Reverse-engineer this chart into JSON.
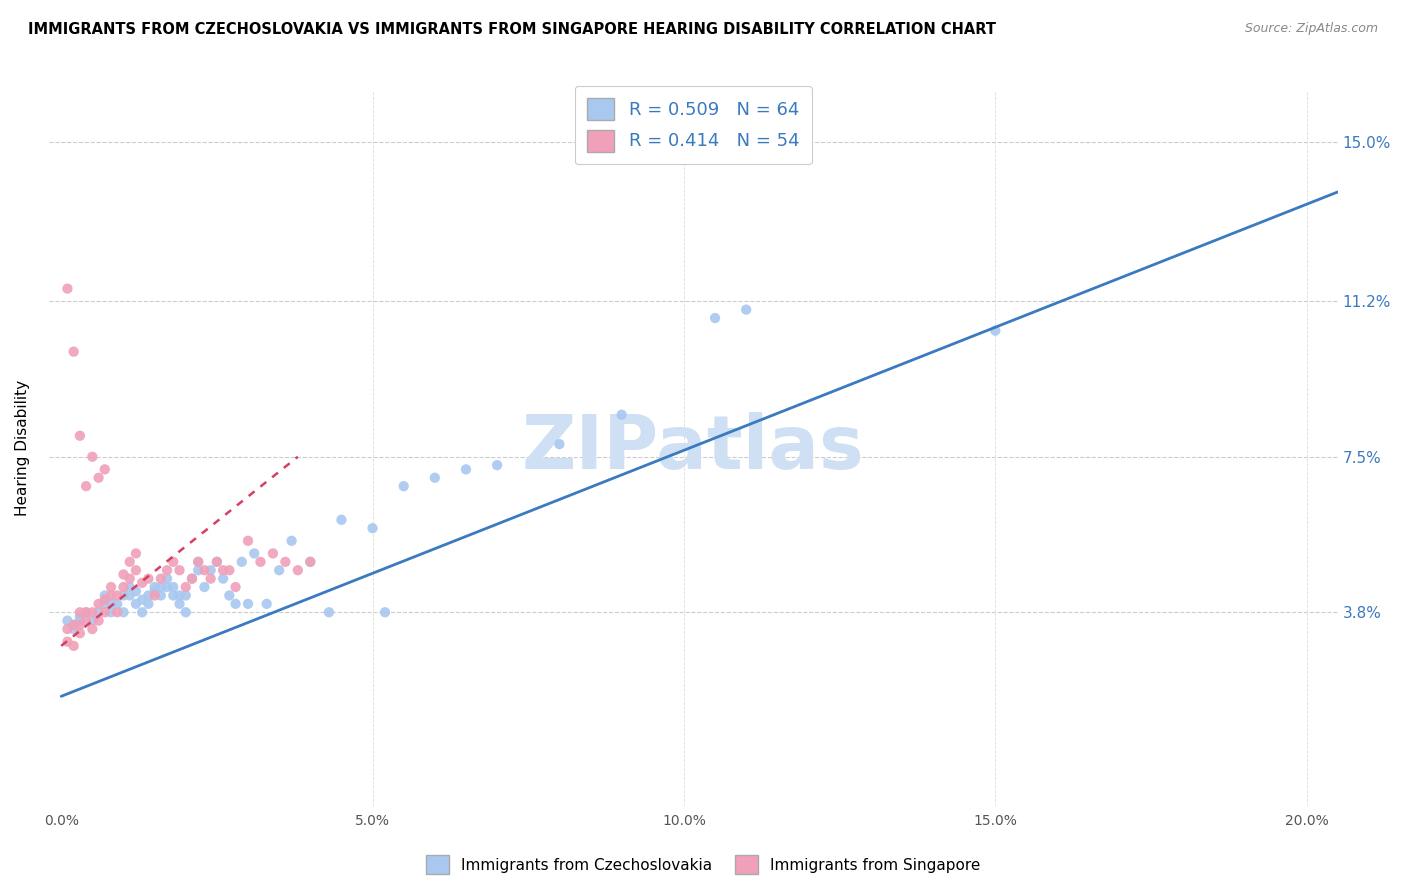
{
  "title": "IMMIGRANTS FROM CZECHOSLOVAKIA VS IMMIGRANTS FROM SINGAPORE HEARING DISABILITY CORRELATION CHART",
  "source": "Source: ZipAtlas.com",
  "ylabel": "Hearing Disability",
  "ytick_labels": [
    "3.8%",
    "7.5%",
    "11.2%",
    "15.0%"
  ],
  "ytick_values": [
    0.038,
    0.075,
    0.112,
    0.15
  ],
  "xtick_values": [
    0.0,
    0.05,
    0.1,
    0.15,
    0.2
  ],
  "xtick_labels": [
    "0.0%",
    "5.0%",
    "10.0%",
    "15.0%",
    "20.0%"
  ],
  "xlim": [
    -0.002,
    0.205
  ],
  "ylim": [
    -0.008,
    0.162
  ],
  "r_blue": 0.509,
  "n_blue": 64,
  "r_pink": 0.414,
  "n_pink": 54,
  "legend_label_blue": "Immigrants from Czechoslovakia",
  "legend_label_pink": "Immigrants from Singapore",
  "color_blue": "#a8c8f0",
  "color_pink": "#f0a0b8",
  "color_blue_line": "#3a7abf",
  "color_pink_line": "#d44060",
  "watermark": "ZIPatlas",
  "watermark_color": "#cfe0f5",
  "blue_line_x": [
    0.0,
    0.205
  ],
  "blue_line_y": [
    0.018,
    0.138
  ],
  "pink_line_x": [
    0.0,
    0.038
  ],
  "pink_line_y": [
    0.03,
    0.075
  ],
  "blue_scatter_x": [
    0.002,
    0.003,
    0.004,
    0.005,
    0.006,
    0.007,
    0.007,
    0.008,
    0.008,
    0.009,
    0.01,
    0.01,
    0.011,
    0.011,
    0.012,
    0.012,
    0.013,
    0.013,
    0.014,
    0.014,
    0.015,
    0.015,
    0.016,
    0.016,
    0.017,
    0.017,
    0.018,
    0.018,
    0.019,
    0.019,
    0.02,
    0.02,
    0.021,
    0.022,
    0.022,
    0.023,
    0.024,
    0.025,
    0.026,
    0.027,
    0.028,
    0.029,
    0.03,
    0.031,
    0.033,
    0.035,
    0.037,
    0.04,
    0.043,
    0.045,
    0.05,
    0.052,
    0.055,
    0.06,
    0.065,
    0.07,
    0.08,
    0.09,
    0.105,
    0.11,
    0.15,
    0.001,
    0.002,
    0.003
  ],
  "blue_scatter_y": [
    0.035,
    0.037,
    0.038,
    0.036,
    0.038,
    0.04,
    0.042,
    0.038,
    0.04,
    0.04,
    0.038,
    0.042,
    0.044,
    0.042,
    0.043,
    0.04,
    0.041,
    0.038,
    0.042,
    0.04,
    0.044,
    0.043,
    0.044,
    0.042,
    0.046,
    0.044,
    0.044,
    0.042,
    0.042,
    0.04,
    0.042,
    0.038,
    0.046,
    0.05,
    0.048,
    0.044,
    0.048,
    0.05,
    0.046,
    0.042,
    0.04,
    0.05,
    0.04,
    0.052,
    0.04,
    0.048,
    0.055,
    0.05,
    0.038,
    0.06,
    0.058,
    0.038,
    0.068,
    0.07,
    0.072,
    0.073,
    0.078,
    0.085,
    0.108,
    0.11,
    0.105,
    0.036,
    0.034,
    0.036
  ],
  "pink_scatter_x": [
    0.001,
    0.001,
    0.002,
    0.002,
    0.003,
    0.003,
    0.003,
    0.004,
    0.004,
    0.005,
    0.005,
    0.006,
    0.006,
    0.007,
    0.007,
    0.008,
    0.008,
    0.009,
    0.009,
    0.01,
    0.01,
    0.011,
    0.011,
    0.012,
    0.012,
    0.013,
    0.014,
    0.015,
    0.016,
    0.017,
    0.018,
    0.019,
    0.02,
    0.021,
    0.022,
    0.023,
    0.024,
    0.025,
    0.026,
    0.027,
    0.028,
    0.03,
    0.032,
    0.034,
    0.036,
    0.038,
    0.04,
    0.001,
    0.002,
    0.003,
    0.004,
    0.005,
    0.006,
    0.007
  ],
  "pink_scatter_y": [
    0.031,
    0.034,
    0.03,
    0.035,
    0.033,
    0.035,
    0.038,
    0.036,
    0.038,
    0.034,
    0.038,
    0.036,
    0.04,
    0.038,
    0.041,
    0.042,
    0.044,
    0.038,
    0.042,
    0.044,
    0.047,
    0.046,
    0.05,
    0.048,
    0.052,
    0.045,
    0.046,
    0.042,
    0.046,
    0.048,
    0.05,
    0.048,
    0.044,
    0.046,
    0.05,
    0.048,
    0.046,
    0.05,
    0.048,
    0.048,
    0.044,
    0.055,
    0.05,
    0.052,
    0.05,
    0.048,
    0.05,
    0.115,
    0.1,
    0.08,
    0.068,
    0.075,
    0.07,
    0.072
  ]
}
